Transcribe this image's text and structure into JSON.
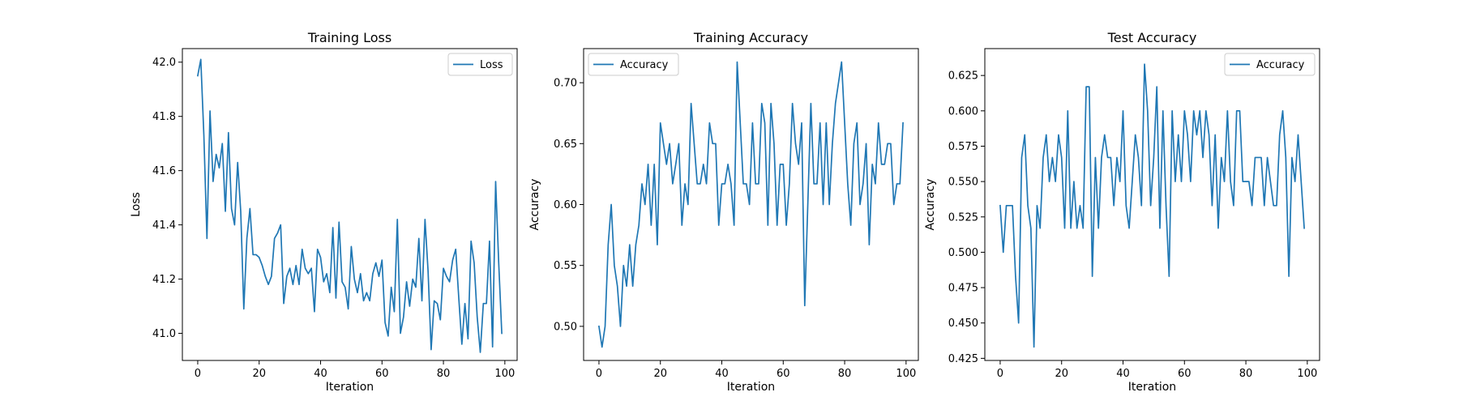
{
  "chart_data": [
    {
      "type": "line",
      "title": "Training Loss",
      "xlabel": "Iteration",
      "ylabel": "Loss",
      "xlim": [
        -5,
        104
      ],
      "ylim": [
        40.9,
        42.05
      ],
      "xticks": [
        0,
        20,
        40,
        60,
        80,
        100
      ],
      "yticks": [
        41.0,
        41.2,
        41.4,
        41.6,
        41.8,
        42.0
      ],
      "ytick_decimals": 1,
      "legend_position": "upper right",
      "grid": false,
      "series": [
        {
          "name": "Loss",
          "color": "#1f77b4",
          "x": [
            0,
            1,
            2,
            3,
            4,
            5,
            6,
            7,
            8,
            9,
            10,
            11,
            12,
            13,
            14,
            15,
            16,
            17,
            18,
            19,
            20,
            21,
            22,
            23,
            24,
            25,
            26,
            27,
            28,
            29,
            30,
            31,
            32,
            33,
            34,
            35,
            36,
            37,
            38,
            39,
            40,
            41,
            42,
            43,
            44,
            45,
            46,
            47,
            48,
            49,
            50,
            51,
            52,
            53,
            54,
            55,
            56,
            57,
            58,
            59,
            60,
            61,
            62,
            63,
            64,
            65,
            66,
            67,
            68,
            69,
            70,
            71,
            72,
            73,
            74,
            75,
            76,
            77,
            78,
            79,
            80,
            81,
            82,
            83,
            84,
            85,
            86,
            87,
            88,
            89,
            90,
            91,
            92,
            93,
            94,
            95,
            96,
            97,
            98,
            99
          ],
          "values": [
            41.95,
            42.01,
            41.73,
            41.35,
            41.82,
            41.56,
            41.66,
            41.61,
            41.7,
            41.45,
            41.74,
            41.46,
            41.4,
            41.63,
            41.45,
            41.09,
            41.35,
            41.46,
            41.29,
            41.29,
            41.28,
            41.25,
            41.21,
            41.18,
            41.21,
            41.35,
            41.37,
            41.4,
            41.11,
            41.21,
            41.24,
            41.18,
            41.25,
            41.18,
            41.31,
            41.24,
            41.22,
            41.24,
            41.08,
            41.31,
            41.28,
            41.19,
            41.22,
            41.15,
            41.39,
            41.13,
            41.41,
            41.19,
            41.17,
            41.09,
            41.32,
            41.2,
            41.15,
            41.22,
            41.12,
            41.15,
            41.12,
            41.22,
            41.26,
            41.21,
            41.27,
            41.04,
            40.99,
            41.17,
            41.08,
            41.42,
            41.0,
            41.06,
            41.19,
            41.1,
            41.2,
            41.17,
            41.35,
            41.12,
            41.42,
            41.23,
            40.94,
            41.12,
            41.11,
            41.05,
            41.24,
            41.21,
            41.19,
            41.27,
            41.31,
            41.13,
            40.96,
            41.11,
            40.98,
            41.34,
            41.26,
            41.06,
            40.93,
            41.11,
            41.11,
            41.34,
            40.95,
            41.56,
            41.26,
            41.0
          ]
        }
      ]
    },
    {
      "type": "line",
      "title": "Training Accuracy",
      "xlabel": "Iteration",
      "ylabel": "Accuracy",
      "xlim": [
        -5,
        104
      ],
      "ylim": [
        0.472,
        0.728
      ],
      "xticks": [
        0,
        20,
        40,
        60,
        80,
        100
      ],
      "yticks": [
        0.5,
        0.55,
        0.6,
        0.65,
        0.7
      ],
      "ytick_decimals": 2,
      "legend_position": "upper left",
      "grid": false,
      "series": [
        {
          "name": "Accuracy",
          "color": "#1f77b4",
          "x": [
            0,
            1,
            2,
            3,
            4,
            5,
            6,
            7,
            8,
            9,
            10,
            11,
            12,
            13,
            14,
            15,
            16,
            17,
            18,
            19,
            20,
            21,
            22,
            23,
            24,
            25,
            26,
            27,
            28,
            29,
            30,
            31,
            32,
            33,
            34,
            35,
            36,
            37,
            38,
            39,
            40,
            41,
            42,
            43,
            44,
            45,
            46,
            47,
            48,
            49,
            50,
            51,
            52,
            53,
            54,
            55,
            56,
            57,
            58,
            59,
            60,
            61,
            62,
            63,
            64,
            65,
            66,
            67,
            68,
            69,
            70,
            71,
            72,
            73,
            74,
            75,
            76,
            77,
            78,
            79,
            80,
            81,
            82,
            83,
            84,
            85,
            86,
            87,
            88,
            89,
            90,
            91,
            92,
            93,
            94,
            95,
            96,
            97,
            98,
            99
          ],
          "values": [
            0.5,
            0.483,
            0.5,
            0.567,
            0.6,
            0.55,
            0.533,
            0.5,
            0.55,
            0.533,
            0.567,
            0.533,
            0.567,
            0.583,
            0.617,
            0.6,
            0.633,
            0.583,
            0.633,
            0.567,
            0.667,
            0.65,
            0.633,
            0.65,
            0.617,
            0.633,
            0.65,
            0.583,
            0.617,
            0.6,
            0.683,
            0.65,
            0.617,
            0.617,
            0.633,
            0.617,
            0.667,
            0.65,
            0.65,
            0.583,
            0.617,
            0.617,
            0.633,
            0.617,
            0.583,
            0.717,
            0.667,
            0.617,
            0.617,
            0.6,
            0.667,
            0.617,
            0.617,
            0.683,
            0.667,
            0.583,
            0.683,
            0.65,
            0.583,
            0.633,
            0.633,
            0.583,
            0.617,
            0.683,
            0.65,
            0.633,
            0.667,
            0.517,
            0.6,
            0.683,
            0.617,
            0.617,
            0.667,
            0.6,
            0.667,
            0.6,
            0.65,
            0.683,
            0.7,
            0.717,
            0.667,
            0.617,
            0.583,
            0.65,
            0.667,
            0.6,
            0.617,
            0.65,
            0.567,
            0.633,
            0.617,
            0.667,
            0.633,
            0.633,
            0.65,
            0.65,
            0.6,
            0.617,
            0.617,
            0.667
          ]
        }
      ]
    },
    {
      "type": "line",
      "title": "Test Accuracy",
      "xlabel": "Iteration",
      "ylabel": "Accuracy",
      "xlim": [
        -5,
        104
      ],
      "ylim": [
        0.4235,
        0.644
      ],
      "xticks": [
        0,
        20,
        40,
        60,
        80,
        100
      ],
      "yticks": [
        0.425,
        0.45,
        0.475,
        0.5,
        0.525,
        0.55,
        0.575,
        0.6,
        0.625
      ],
      "ytick_decimals": 3,
      "legend_position": "upper right",
      "grid": false,
      "series": [
        {
          "name": "Accuracy",
          "color": "#1f77b4",
          "x": [
            0,
            1,
            2,
            3,
            4,
            5,
            6,
            7,
            8,
            9,
            10,
            11,
            12,
            13,
            14,
            15,
            16,
            17,
            18,
            19,
            20,
            21,
            22,
            23,
            24,
            25,
            26,
            27,
            28,
            29,
            30,
            31,
            32,
            33,
            34,
            35,
            36,
            37,
            38,
            39,
            40,
            41,
            42,
            43,
            44,
            45,
            46,
            47,
            48,
            49,
            50,
            51,
            52,
            53,
            54,
            55,
            56,
            57,
            58,
            59,
            60,
            61,
            62,
            63,
            64,
            65,
            66,
            67,
            68,
            69,
            70,
            71,
            72,
            73,
            74,
            75,
            76,
            77,
            78,
            79,
            80,
            81,
            82,
            83,
            84,
            85,
            86,
            87,
            88,
            89,
            90,
            91,
            92,
            93,
            94,
            95,
            96,
            97,
            98,
            99
          ],
          "values": [
            0.533,
            0.5,
            0.533,
            0.533,
            0.533,
            0.483,
            0.45,
            0.567,
            0.583,
            0.533,
            0.517,
            0.433,
            0.533,
            0.517,
            0.567,
            0.583,
            0.55,
            0.567,
            0.55,
            0.583,
            0.567,
            0.517,
            0.6,
            0.517,
            0.55,
            0.517,
            0.533,
            0.517,
            0.617,
            0.617,
            0.483,
            0.567,
            0.517,
            0.567,
            0.583,
            0.567,
            0.567,
            0.533,
            0.567,
            0.55,
            0.6,
            0.533,
            0.517,
            0.55,
            0.583,
            0.567,
            0.533,
            0.633,
            0.6,
            0.533,
            0.567,
            0.617,
            0.517,
            0.6,
            0.533,
            0.483,
            0.6,
            0.55,
            0.583,
            0.55,
            0.6,
            0.583,
            0.55,
            0.6,
            0.583,
            0.6,
            0.567,
            0.6,
            0.583,
            0.533,
            0.583,
            0.517,
            0.567,
            0.55,
            0.6,
            0.55,
            0.533,
            0.6,
            0.6,
            0.55,
            0.55,
            0.55,
            0.533,
            0.567,
            0.567,
            0.567,
            0.533,
            0.567,
            0.55,
            0.533,
            0.533,
            0.583,
            0.6,
            0.567,
            0.483,
            0.567,
            0.55,
            0.583,
            0.55,
            0.517
          ]
        }
      ]
    }
  ]
}
